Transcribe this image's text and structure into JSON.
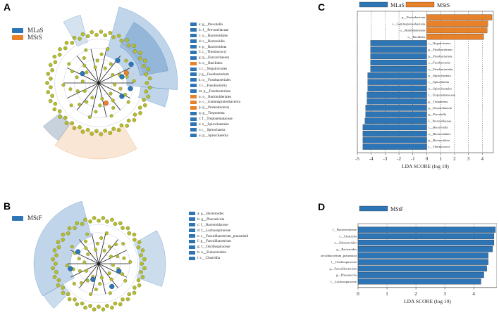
{
  "panels": {
    "a": "A",
    "b": "B",
    "c": "C",
    "d": "D"
  },
  "colors": {
    "MLaS": "#2e75b6",
    "MStS": "#e8822a",
    "MStF": "#2e75b6",
    "node": "#b5bd2e",
    "grid": "#555555"
  },
  "panelA": {
    "legend": [
      {
        "name": "MLaS",
        "color": "#2e75b6"
      },
      {
        "name": "MStS",
        "color": "#e8822a"
      }
    ],
    "taxa": [
      {
        "label": "a: g__Prevotella",
        "group": "MLaS"
      },
      {
        "label": "b: f__Prevotellaceae",
        "group": "MLaS"
      },
      {
        "label": "c: o__Bacteroidales",
        "group": "MLaS"
      },
      {
        "label": "d: c__Bacteroidia",
        "group": "MLaS"
      },
      {
        "label": "e: p__Bacteroidota",
        "group": "MLaS"
      },
      {
        "label": "f: c__Thermococci",
        "group": "MLaS"
      },
      {
        "label": "g: p__Euryarchaeota",
        "group": "MLaS"
      },
      {
        "label": "h: o__Bacillales",
        "group": "MStS"
      },
      {
        "label": "i: c__Negativicutes",
        "group": "MLaS"
      },
      {
        "label": "j: g__Fusobacterium",
        "group": "MLaS"
      },
      {
        "label": "k: o__Fusobacteriales",
        "group": "MLaS"
      },
      {
        "label": "l: c__Fusobacteriia",
        "group": "MLaS"
      },
      {
        "label": "m: p__Fusobacteriota",
        "group": "MLaS"
      },
      {
        "label": "n: o__Burkholderiales",
        "group": "MStS"
      },
      {
        "label": "o: c__Gammaproteobacteria",
        "group": "MStS"
      },
      {
        "label": "p: p__Proteobacteria",
        "group": "MStS"
      },
      {
        "label": "q: g__Treponema",
        "group": "MLaS"
      },
      {
        "label": "r: f__Treponemataceae",
        "group": "MLaS"
      },
      {
        "label": "s: o__Spirochaetales",
        "group": "MLaS"
      },
      {
        "label": "t: c__Spirochaetia",
        "group": "MLaS"
      },
      {
        "label": "u: p__Spirochaetota",
        "group": "MLaS"
      }
    ]
  },
  "panelB": {
    "legend": [
      {
        "name": "MStF",
        "color": "#2e75b6"
      }
    ],
    "taxa": [
      {
        "label": "a: g__Bacteroides",
        "group": "MStF"
      },
      {
        "label": "b: g__Phocaeicola",
        "group": "MStF"
      },
      {
        "label": "c: f__Bacteroidaceae",
        "group": "MStF"
      },
      {
        "label": "d: f__Lachnospiraceae",
        "group": "MStF"
      },
      {
        "label": "e: s__Faecalibacterium_prausnitzii",
        "group": "MStF"
      },
      {
        "label": "f: g__Faecalibacterium",
        "group": "MStF"
      },
      {
        "label": "g: f__Oscillospiraceae",
        "group": "MStF"
      },
      {
        "label": "h: o__Eubacteriales",
        "group": "MStF"
      },
      {
        "label": "i: c__Clostridia",
        "group": "MStF"
      }
    ]
  },
  "chart_data": [
    {
      "id": "C",
      "type": "bar",
      "orientation": "horizontal",
      "legend": [
        "MLaS",
        "MStS"
      ],
      "legend_position": "top-center",
      "xlabel": "LDA SCORE (log 10)",
      "xlim": [
        -5,
        4.8
      ],
      "ticks": [
        -5,
        -4,
        -3,
        -2,
        -1,
        0,
        1,
        2,
        3,
        4
      ],
      "categories": [
        "p__Proteobacteria",
        "c__Gammaproteobacteria",
        "o__Burkholderiales",
        "o__Bacillales",
        "c__Negativicutes",
        "g__Fusobacterium",
        "p__Fusobacteriota",
        "c__Fusobacteriia",
        "o__Fusobacteriales",
        "p__Spirochaetota",
        "c__Spirochaetia",
        "o__Spirochaetales",
        "f__Treponemataceae",
        "g__Treponema",
        "p__Euryarchaeota",
        "g__Prevotella",
        "f__Prevotellaceae",
        "c__Bacteroidia",
        "o__Bacteroidales",
        "p__Bacteroidota",
        "c__Thermococci"
      ],
      "values": [
        4.7,
        4.4,
        4.35,
        4.1,
        -4.05,
        -4.05,
        -4.05,
        -4.05,
        -4.05,
        -4.25,
        -4.25,
        -4.25,
        -4.3,
        -4.3,
        -4.4,
        -4.4,
        -4.45,
        -4.6,
        -4.6,
        -4.6,
        -4.6
      ],
      "groups": [
        "MStS",
        "MStS",
        "MStS",
        "MStS",
        "MLaS",
        "MLaS",
        "MLaS",
        "MLaS",
        "MLaS",
        "MLaS",
        "MLaS",
        "MLaS",
        "MLaS",
        "MLaS",
        "MLaS",
        "MLaS",
        "MLaS",
        "MLaS",
        "MLaS",
        "MLaS",
        "MLaS"
      ],
      "grid": true
    },
    {
      "id": "D",
      "type": "bar",
      "orientation": "horizontal",
      "legend": [
        "MStF"
      ],
      "legend_position": "top-center",
      "xlabel": "LDA SCORE (log 10)",
      "xlim": [
        0,
        4.8
      ],
      "ticks": [
        0,
        1,
        2,
        3,
        4
      ],
      "categories": [
        "f__Bacteroidaceae",
        "c__Clostridia",
        "o__Eubacteriales",
        "g__Bacteroides",
        "s__Faecalibacterium_prausnitzii",
        "f__Oscillospiraceae",
        "g__Faecalibacterium",
        "g__Phocaeicola",
        "f__Lachnospiraceae"
      ],
      "values": [
        4.75,
        4.7,
        4.7,
        4.65,
        4.5,
        4.5,
        4.45,
        4.35,
        4.25
      ],
      "groups": [
        "MStF",
        "MStF",
        "MStF",
        "MStF",
        "MStF",
        "MStF",
        "MStF",
        "MStF",
        "MStF"
      ],
      "grid": true
    }
  ]
}
